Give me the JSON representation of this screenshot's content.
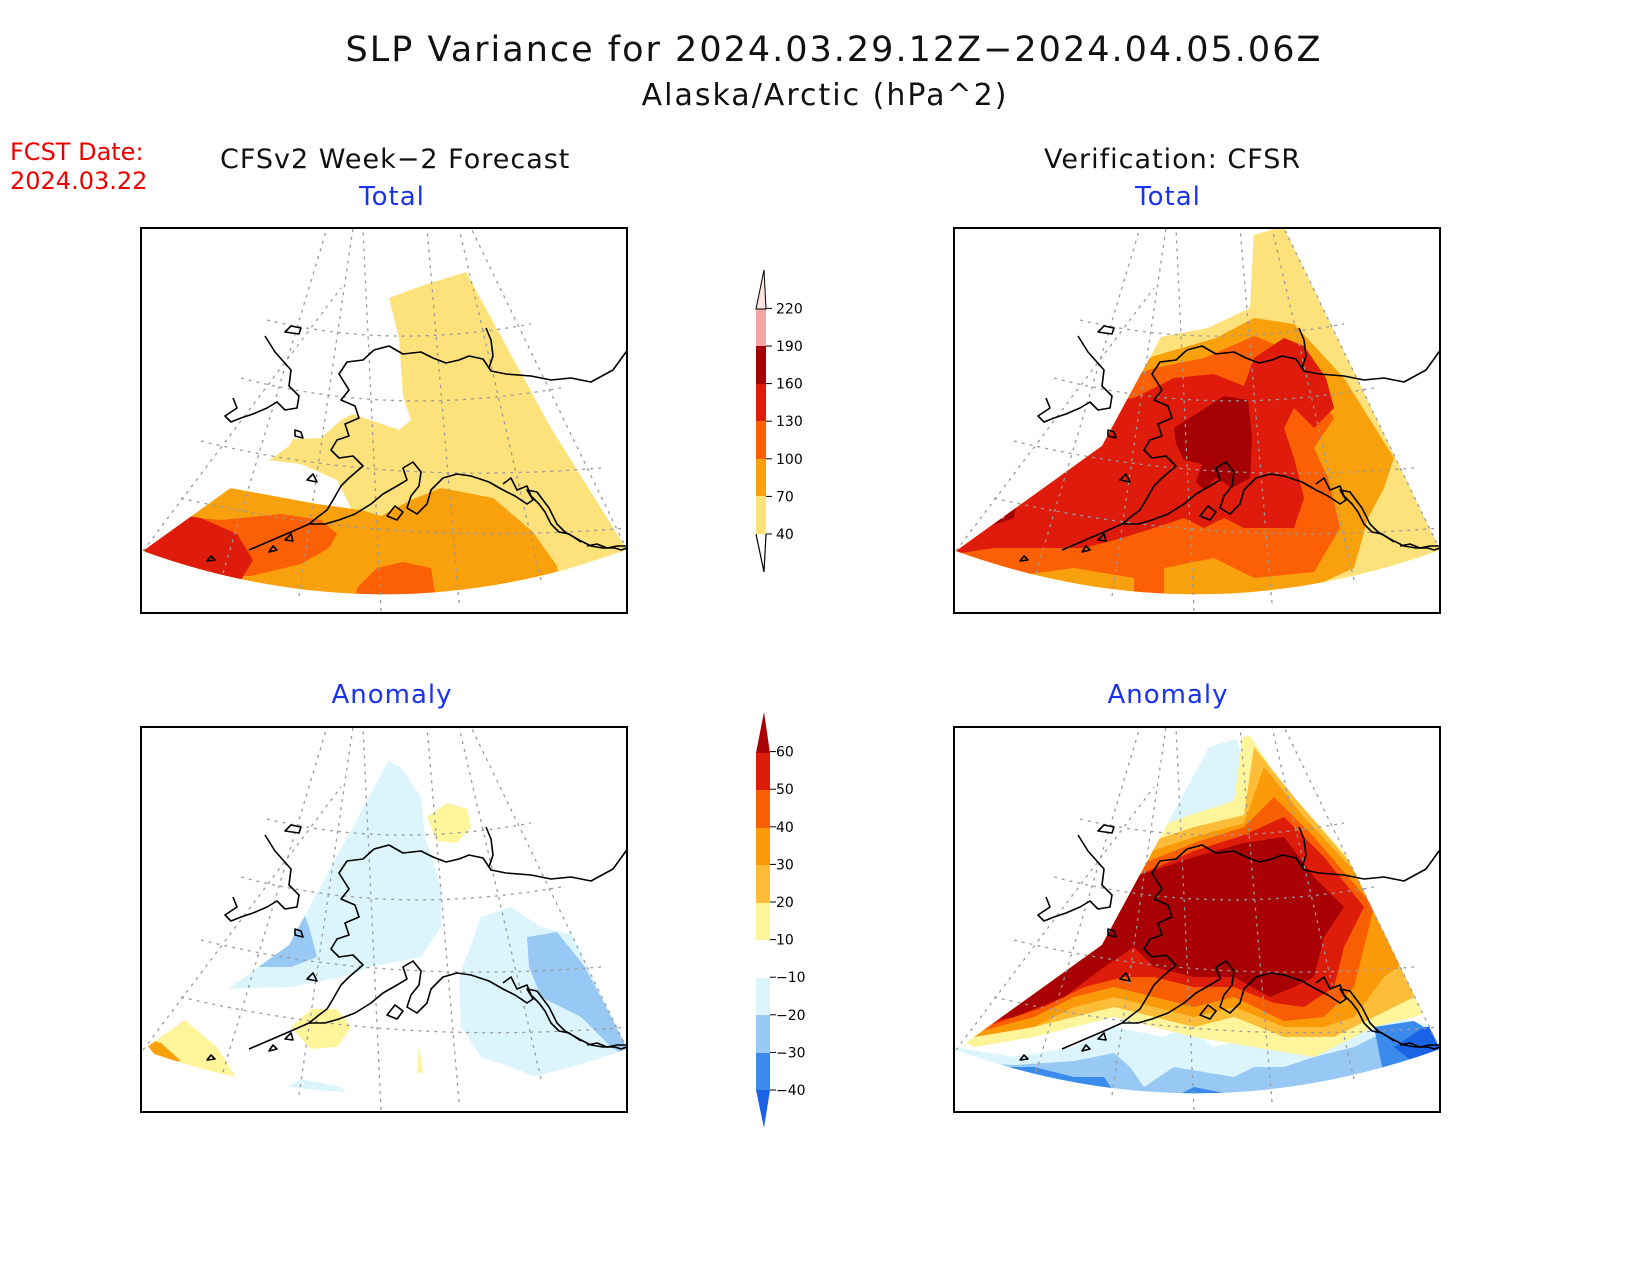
{
  "title": {
    "line1": "SLP Variance for 2024.03.29.12Z−2024.04.05.06Z",
    "line2": "Alaska/Arctic (hPa^2)"
  },
  "fcst": {
    "label": "FCST Date:",
    "date": "2024.03.22"
  },
  "columns": {
    "left": "CFSv2 Week−2 Forecast",
    "right": "Verification: CFSR"
  },
  "panels": {
    "top_left": "Total",
    "top_right": "Total",
    "bottom_left": "Anomaly",
    "bottom_right": "Anomaly"
  },
  "colorbars": {
    "total": {
      "labels": [
        "40",
        "70",
        "100",
        "130",
        "160",
        "190",
        "220"
      ],
      "colors": [
        "#fde27c",
        "#f9a00d",
        "#fb6004",
        "#df1b0b",
        "#a50004",
        "#f4a5a6",
        "#fde2e2"
      ]
    },
    "anomaly": {
      "labels": [
        "-40",
        "-30",
        "-20",
        "-10",
        "10",
        "20",
        "30",
        "40",
        "50",
        "60"
      ],
      "colors": [
        "#1a63e6",
        "#3a8bec",
        "#98c9f5",
        "#dcf5fd",
        "#ffffff",
        "#fef59b",
        "#fdbd38",
        "#fb9a08",
        "#f85e02",
        "#dd1c0a",
        "#a80004"
      ]
    }
  }
}
